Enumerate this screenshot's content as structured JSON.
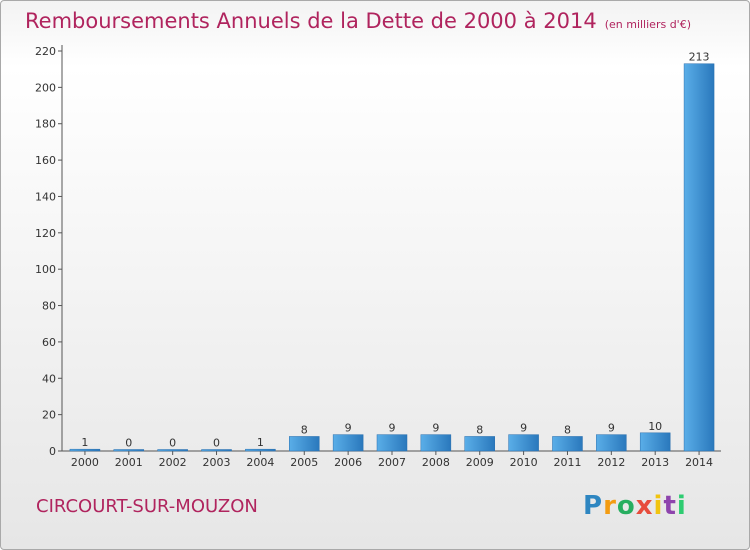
{
  "title": "Remboursements Annuels de la Dette de 2000 à 2014",
  "subtitle": "(en milliers d'€)",
  "commune": "CIRCOURT-SUR-MOUZON",
  "logo": {
    "text": "Proxiti",
    "letters": [
      "P",
      "r",
      "o",
      "x",
      "i",
      "t",
      "i"
    ],
    "colors": [
      "#2e86c1",
      "#f39c12",
      "#27ae60",
      "#e74c3c",
      "#f1c40f",
      "#8e44ad",
      "#2ecc71"
    ]
  },
  "chart_data": {
    "type": "bar",
    "categories": [
      "2000",
      "2001",
      "2002",
      "2003",
      "2004",
      "2005",
      "2006",
      "2007",
      "2008",
      "2009",
      "2010",
      "2011",
      "2012",
      "2013",
      "2014"
    ],
    "values": [
      1,
      0,
      0,
      0,
      1,
      8,
      9,
      9,
      9,
      8,
      9,
      8,
      9,
      10,
      213
    ],
    "data_labels": [
      "1",
      "0",
      "0",
      "0",
      "1",
      "8",
      "9",
      "9",
      "9",
      "8",
      "9",
      "8",
      "9",
      "10",
      "213"
    ],
    "ylim": [
      0,
      220
    ],
    "yticks": [
      0,
      20,
      40,
      60,
      80,
      100,
      120,
      140,
      160,
      180,
      200,
      220
    ],
    "grid": false,
    "bar_color": "#3d8fd1"
  }
}
